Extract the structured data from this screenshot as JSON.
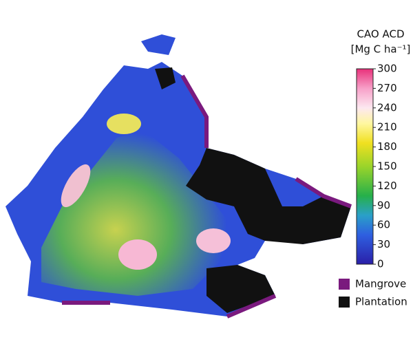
{
  "map": {
    "colorbar": {
      "title": "CAO ACD",
      "unit": "[Mg C ha⁻¹]",
      "lim": [
        0,
        300
      ],
      "ticks": [
        0,
        30,
        60,
        90,
        120,
        150,
        180,
        210,
        240,
        270,
        300
      ]
    },
    "legend": [
      {
        "label": "Mangrove",
        "color": "#7a1a7e"
      },
      {
        "label": "Plantation",
        "color": "#111111"
      }
    ]
  }
}
